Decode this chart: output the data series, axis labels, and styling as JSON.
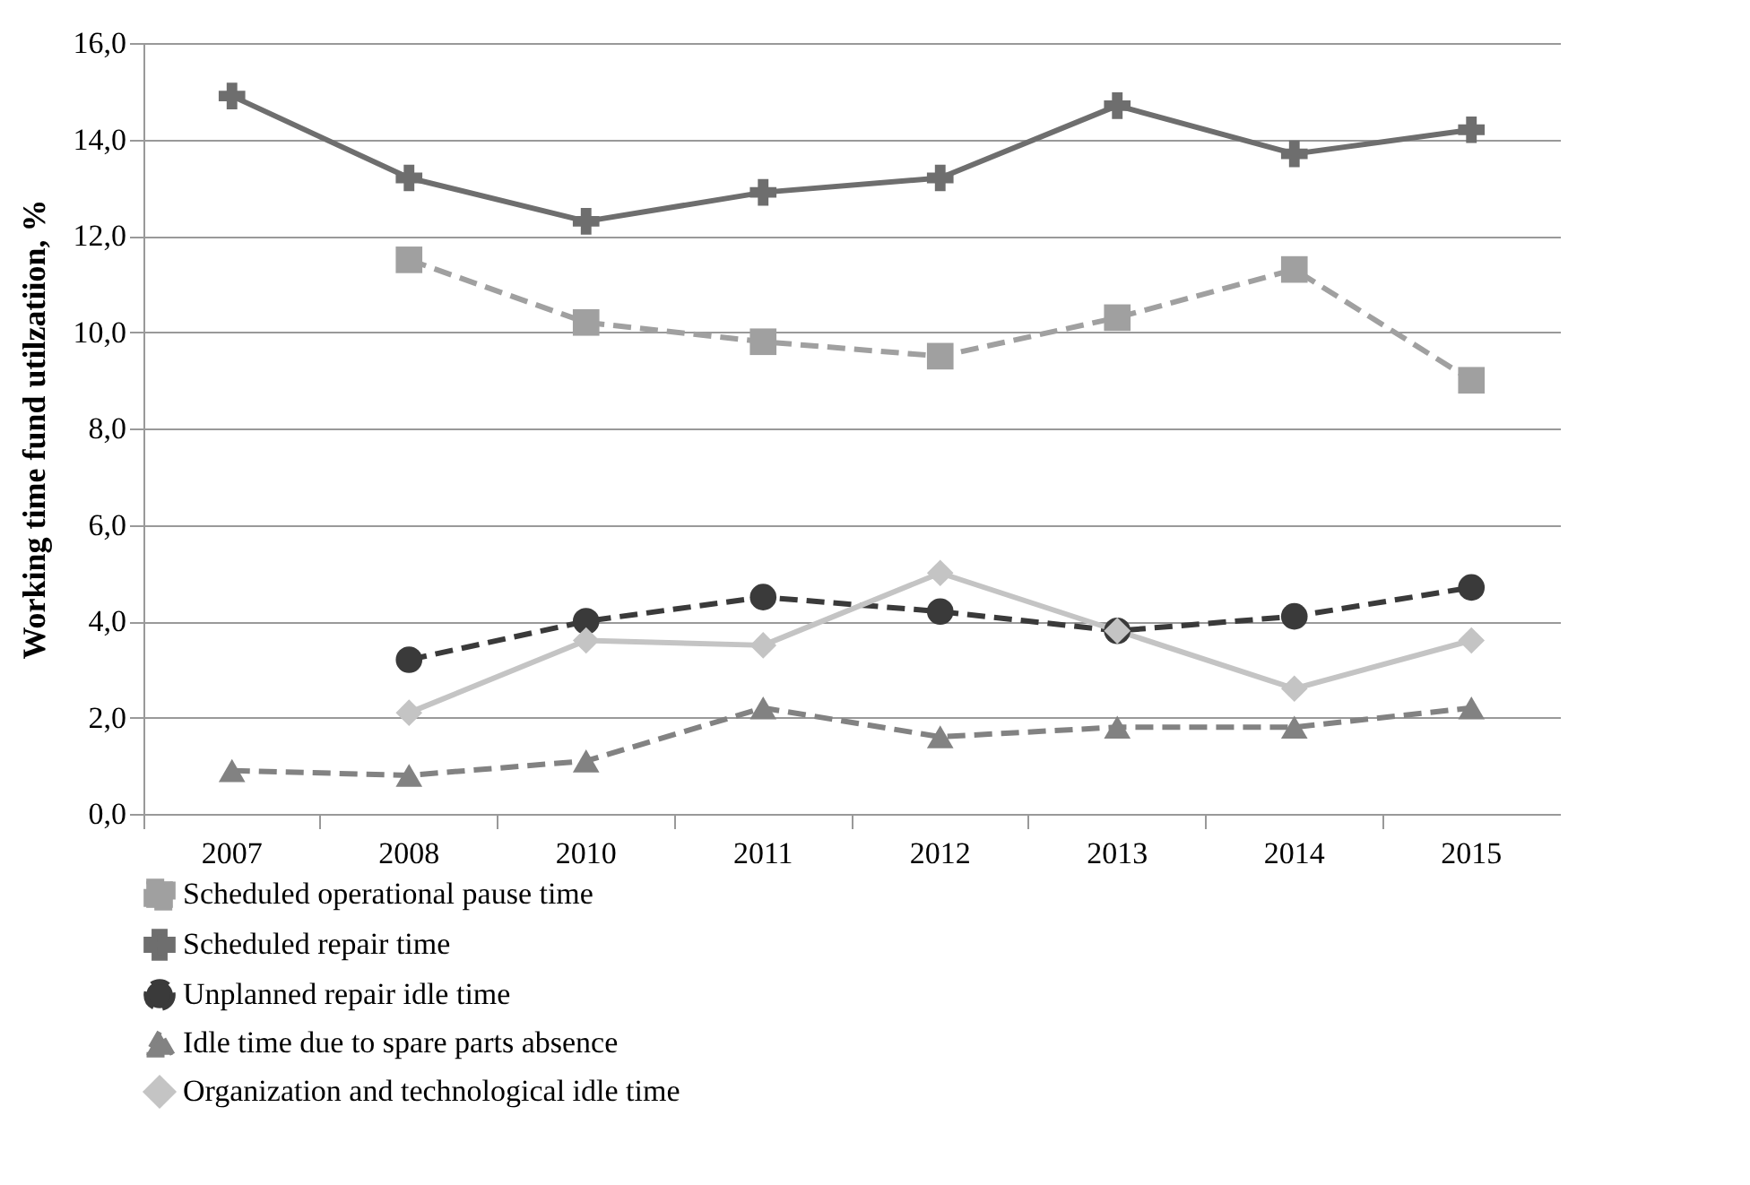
{
  "chart_data": {
    "type": "line",
    "ylabel": "Working time fund utilzatiion, %",
    "categories": [
      "2007",
      "2008",
      "2010",
      "2011",
      "2012",
      "2013",
      "2014",
      "2015"
    ],
    "ylim": [
      0,
      16
    ],
    "yticks": [
      {
        "value": 0,
        "label": "0,0"
      },
      {
        "value": 2,
        "label": "2,0"
      },
      {
        "value": 4,
        "label": "4,0"
      },
      {
        "value": 6,
        "label": "6,0"
      },
      {
        "value": 8,
        "label": "8,0"
      },
      {
        "value": 10,
        "label": "10,0"
      },
      {
        "value": 12,
        "label": "12,0"
      },
      {
        "value": 14,
        "label": "14,0"
      },
      {
        "value": 16,
        "label": "16,0"
      }
    ],
    "grid": "y",
    "legend": "bottom",
    "series": [
      {
        "name": "Scheduled operational pause time",
        "color": "#a0a0a0",
        "marker": "square",
        "line_style": "dashed",
        "values": [
          null,
          11.5,
          10.2,
          9.8,
          9.5,
          10.3,
          11.3,
          9.0
        ]
      },
      {
        "name": "Scheduled repair time",
        "color": "#6e6e6e",
        "marker": "cross",
        "line_style": "solid",
        "values": [
          14.9,
          13.2,
          12.3,
          12.9,
          13.2,
          14.7,
          13.7,
          14.2
        ]
      },
      {
        "name": "Unplanned repair idle time",
        "color": "#3a3a3a",
        "marker": "circle",
        "line_style": "dashed",
        "values": [
          null,
          3.2,
          4.0,
          4.5,
          4.2,
          3.8,
          4.1,
          4.7
        ]
      },
      {
        "name": "Idle time due to spare parts absence",
        "color": "#828282",
        "marker": "triangle",
        "line_style": "dashed",
        "values": [
          0.9,
          0.8,
          1.1,
          2.2,
          1.6,
          1.8,
          1.8,
          2.2
        ]
      },
      {
        "name": "Organization and technological idle time",
        "color": "#c4c4c4",
        "marker": "diamond",
        "line_style": "solid",
        "values": [
          null,
          2.1,
          3.6,
          3.5,
          5.0,
          3.8,
          2.6,
          3.6
        ]
      }
    ]
  }
}
